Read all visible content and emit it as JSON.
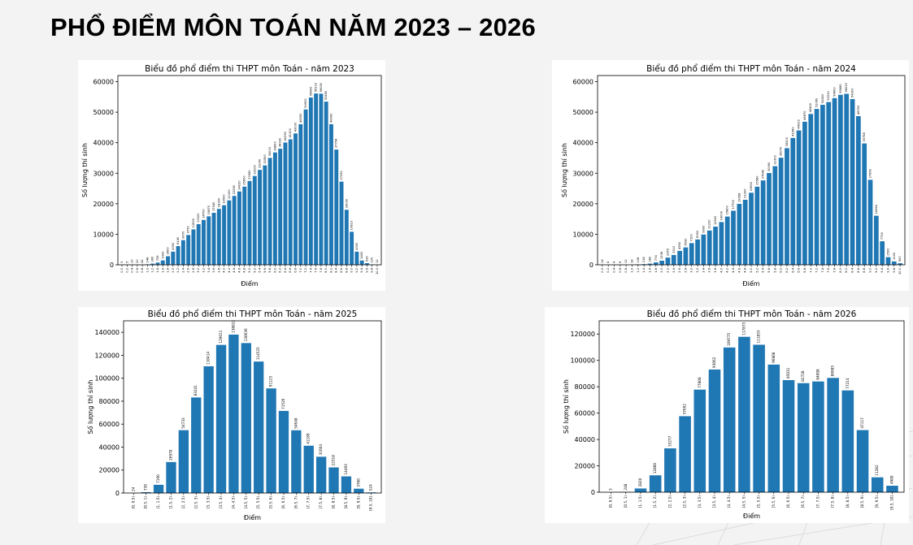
{
  "page": {
    "title": "PHỔ ĐIỂM MÔN TOÁN NĂM 2023 – 2026"
  },
  "colors": {
    "bar": "#1f77b4",
    "background": "#f3f3f3",
    "panel": "#ffffff"
  },
  "chart_data": [
    {
      "type": "bar",
      "title": "Biểu đồ phổ điểm thi THPT môn Toán - năm 2023",
      "xlabel": "Điểm",
      "ylabel": "Số lượng thí sinh",
      "ylim": [
        0,
        62000
      ],
      "yticks": [
        0,
        10000,
        20000,
        30000,
        40000,
        50000,
        60000
      ],
      "ytick_labels": [
        "0",
        "10000",
        "20000",
        "30000",
        "40000",
        "50000",
        "60000"
      ],
      "grid": false,
      "categories": [
        "0.0",
        "0.2",
        "0.4",
        "0.6",
        "0.8",
        "1.0",
        "1.2",
        "1.4",
        "1.6",
        "1.8",
        "2.0",
        "2.2",
        "2.4",
        "2.6",
        "2.8",
        "3.0",
        "3.2",
        "3.4",
        "3.6",
        "3.8",
        "4.0",
        "4.2",
        "4.4",
        "4.6",
        "4.8",
        "5.0",
        "5.2",
        "5.4",
        "5.6",
        "5.8",
        "6.0",
        "6.2",
        "6.4",
        "6.6",
        "6.8",
        "7.0",
        "7.2",
        "7.4",
        "7.6",
        "7.8",
        "8.0",
        "8.2",
        "8.4",
        "8.6",
        "8.8",
        "9.0",
        "9.2",
        "9.4",
        "9.6",
        "9.8",
        "10.0"
      ],
      "values": [
        3,
        5,
        10,
        20,
        42,
        148,
        380,
        726,
        1430,
        2800,
        4300,
        6140,
        8070,
        9750,
        11600,
        13320,
        14700,
        15870,
        17040,
        18300,
        19500,
        21100,
        22550,
        24020,
        25600,
        27450,
        29100,
        31090,
        32550,
        35010,
        36800,
        38020,
        40050,
        41100,
        43030,
        46050,
        50900,
        54800,
        56110,
        56050,
        53450,
        46060,
        37754,
        27250,
        18030,
        10823,
        4300,
        1400,
        530,
        100,
        12
      ],
      "data_labels": [
        "3",
        "5",
        "10",
        "20",
        "42",
        "148",
        "380",
        "726",
        "1430",
        "2800",
        "4300",
        "6140",
        "8070",
        "9750",
        "11600",
        "13320",
        "14700",
        "15870",
        "17040",
        "18300",
        "19500",
        "21100",
        "22550",
        "24020",
        "25600",
        "27450",
        "29100",
        "31090",
        "32550",
        "35010",
        "36800",
        "38020",
        "40050",
        "41100",
        "43030",
        "46050",
        "50900",
        "54800",
        "56110",
        "56050",
        "53450",
        "46060",
        "37754",
        "27250",
        "18030",
        "10823",
        "4300",
        "1400",
        "530",
        "100",
        "12"
      ]
    },
    {
      "type": "bar",
      "title": "Biểu đồ phổ điểm thi THPT môn Toán - năm 2024",
      "xlabel": "Điểm",
      "ylabel": "Số lượng thí sinh",
      "ylim": [
        0,
        62000
      ],
      "yticks": [
        0,
        10000,
        20000,
        30000,
        40000,
        50000,
        60000
      ],
      "ytick_labels": [
        "0",
        "10000",
        "20000",
        "30000",
        "40000",
        "50000",
        "60000"
      ],
      "grid": false,
      "categories": [
        "0.0",
        "0.2",
        "0.4",
        "0.6",
        "0.8",
        "1.0",
        "1.2",
        "1.4",
        "1.6",
        "1.8",
        "2.0",
        "2.2",
        "2.4",
        "2.6",
        "2.8",
        "3.0",
        "3.2",
        "3.4",
        "3.6",
        "3.8",
        "4.0",
        "4.2",
        "4.4",
        "4.6",
        "4.8",
        "5.0",
        "5.2",
        "5.4",
        "5.6",
        "5.8",
        "6.0",
        "6.2",
        "6.4",
        "6.6",
        "6.8",
        "7.0",
        "7.2",
        "7.4",
        "7.6",
        "7.8",
        "8.0",
        "8.2",
        "8.4",
        "8.6",
        "8.8",
        "9.0",
        "9.2",
        "9.4",
        "9.6",
        "9.8",
        "10.0"
      ],
      "values": [
        14,
        4,
        4,
        6,
        12,
        18,
        138,
        218,
        380,
        774,
        1338,
        2355,
        3210,
        4550,
        5690,
        7100,
        8300,
        9900,
        11220,
        12500,
        14000,
        15800,
        17700,
        19958,
        21300,
        23600,
        25580,
        27640,
        30060,
        32300,
        35070,
        38200,
        41560,
        44020,
        46870,
        49400,
        51060,
        52400,
        53310,
        54600,
        55680,
        56020,
        54300,
        48700,
        39758,
        27850,
        16064,
        7700,
        2500,
        1100,
        500
      ],
      "data_labels": [
        "14",
        "4",
        "4",
        "6",
        "12",
        "18",
        "138",
        "218",
        "380",
        "774",
        "1338",
        "2355",
        "3210",
        "4550",
        "5690",
        "7100",
        "8300",
        "9900",
        "11220",
        "12500",
        "14000",
        "15800",
        "17700",
        "19958",
        "21300",
        "23600",
        "25580",
        "27640",
        "30060",
        "32300",
        "35070",
        "38200",
        "41560",
        "44020",
        "46870",
        "49400",
        "51060",
        "52400",
        "53310",
        "54600",
        "55680",
        "56020",
        "54300",
        "48700",
        "39758",
        "27850",
        "16064",
        "7700",
        "2500",
        "1100",
        "500"
      ]
    },
    {
      "type": "bar",
      "title": "Biểu đồ phổ điểm thi THPT môn Toán - năm 2025",
      "xlabel": "Điểm",
      "ylabel": "Số lượng thí sinh",
      "ylim": [
        0,
        150000
      ],
      "yticks": [
        0,
        20000,
        40000,
        60000,
        80000,
        100000,
        120000,
        140000
      ],
      "ytick_labels": [
        "0",
        "20000",
        "40000",
        "60000",
        "80000",
        "100000",
        "120000",
        "140000"
      ],
      "grid": false,
      "categories": [
        "[0, 0.5)",
        "[0.5, 1)",
        "[1, 1.5)",
        "[1.5, 2)",
        "[2, 2.5)",
        "[2.5, 3)",
        "[3, 3.5)",
        "[3.5, 4)",
        "[4, 4.5)",
        "[4.5, 5)",
        "[5, 5.5)",
        "[5.5, 6)",
        "[6, 6.5)",
        "[6.5, 7)",
        "[7, 7.5)",
        "[7.5, 8)",
        "[8, 8.5)",
        "[8.5, 9)",
        "[9, 9.5)",
        "[9.5, 10]"
      ],
      "values": [
        24,
        730,
        7160,
        26970,
        54733,
        83241,
        110414,
        129011,
        138022,
        130636,
        114525,
        91125,
        71526,
        54648,
        41189,
        31604,
        22318,
        14493,
        3760,
        524
      ],
      "data_labels": [
        "24",
        "730",
        "7160",
        "26970",
        "54733",
        "83241",
        "110414",
        "129011",
        "138022",
        "130636",
        "114525",
        "91125",
        "71526",
        "54648",
        "41189",
        "31604",
        "22318",
        "14493",
        "3760",
        "524"
      ]
    },
    {
      "type": "bar",
      "title": "Biểu đồ phổ điểm thi THPT môn Toán - năm 2026",
      "xlabel": "Điểm",
      "ylabel": "Số lượng thí sinh",
      "ylim": [
        0,
        130000
      ],
      "yticks": [
        0,
        20000,
        40000,
        60000,
        80000,
        100000,
        120000
      ],
      "ytick_labels": [
        "0",
        "20000",
        "40000",
        "60000",
        "80000",
        "100000",
        "120000"
      ],
      "grid": false,
      "categories": [
        "[0, 0.5)",
        "[0.5, 1)",
        "[1, 1.5)",
        "[1.5, 2)",
        "[2, 2.5)",
        "[2.5, 3)",
        "[3, 3.5)",
        "[3.5, 4)",
        "[4, 4.5)",
        "[4.5, 5)",
        "[5, 5.5)",
        "[5.5, 6)",
        "[6, 6.5)",
        "[6.5, 7)",
        "[7, 7.5)",
        "[7.5, 8)",
        "[8, 8.5)",
        "[8.5, 9)",
        "[9, 9.5)",
        "[9.5, 10]"
      ],
      "values": [
        3,
        248,
        2820,
        12800,
        33277,
        57662,
        77808,
        93062,
        109775,
        117873,
        111853,
        96808,
        85031,
        82728,
        84008,
        86685,
        77214,
        47117,
        11282,
        4900
      ],
      "data_labels": [
        "3",
        "248",
        "2820",
        "12800",
        "33277",
        "57662",
        "77808",
        "93062",
        "109775",
        "117873",
        "111853",
        "96808",
        "85031",
        "82728",
        "84008",
        "86685",
        "77214",
        "47117",
        "11282",
        "4900"
      ]
    }
  ]
}
